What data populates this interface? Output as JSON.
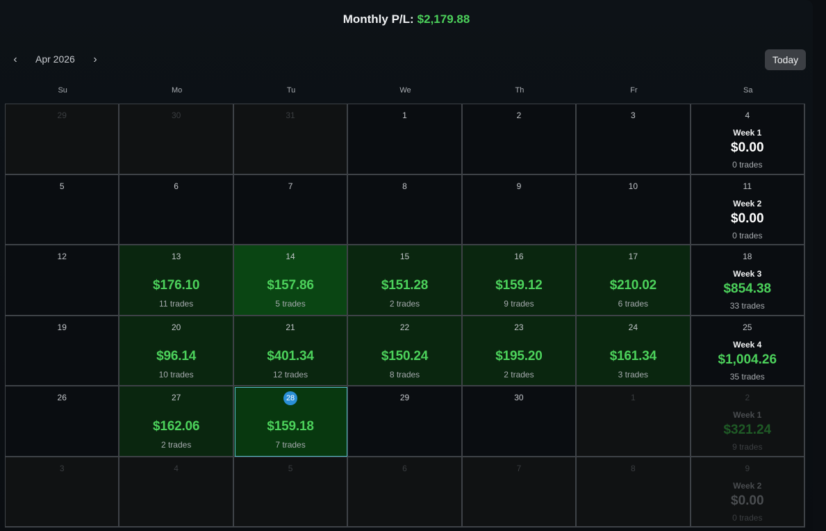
{
  "header": {
    "label": "Monthly P/L:",
    "value": "$2,179.88"
  },
  "nav": {
    "month": "Apr 2026",
    "prev_icon": "‹",
    "next_icon": "›",
    "today_label": "Today"
  },
  "days_of_week": [
    "Su",
    "Mo",
    "Tu",
    "We",
    "Th",
    "Fr",
    "Sa"
  ],
  "weeks": [
    {
      "days": [
        {
          "day": "29",
          "outside": true
        },
        {
          "day": "30",
          "outside": true
        },
        {
          "day": "31",
          "outside": true
        },
        {
          "day": "1"
        },
        {
          "day": "2"
        },
        {
          "day": "3"
        }
      ],
      "summary": {
        "day": "4",
        "label": "Week 1",
        "pnl": "$0.00",
        "trades": "0 trades",
        "positive": false,
        "outside": false
      }
    },
    {
      "days": [
        {
          "day": "5"
        },
        {
          "day": "6"
        },
        {
          "day": "7"
        },
        {
          "day": "8"
        },
        {
          "day": "9"
        },
        {
          "day": "10"
        }
      ],
      "summary": {
        "day": "11",
        "label": "Week 2",
        "pnl": "$0.00",
        "trades": "0 trades",
        "positive": false,
        "outside": false
      }
    },
    {
      "days": [
        {
          "day": "12"
        },
        {
          "day": "13",
          "pnl": "$176.10",
          "trades": "11 trades"
        },
        {
          "day": "14",
          "pnl": "$157.86",
          "trades": "5 trades",
          "strong": true
        },
        {
          "day": "15",
          "pnl": "$151.28",
          "trades": "2 trades"
        },
        {
          "day": "16",
          "pnl": "$159.12",
          "trades": "9 trades"
        },
        {
          "day": "17",
          "pnl": "$210.02",
          "trades": "6 trades"
        }
      ],
      "summary": {
        "day": "18",
        "label": "Week 3",
        "pnl": "$854.38",
        "trades": "33 trades",
        "positive": true,
        "outside": false
      }
    },
    {
      "days": [
        {
          "day": "19"
        },
        {
          "day": "20",
          "pnl": "$96.14",
          "trades": "10 trades"
        },
        {
          "day": "21",
          "pnl": "$401.34",
          "trades": "12 trades"
        },
        {
          "day": "22",
          "pnl": "$150.24",
          "trades": "8 trades"
        },
        {
          "day": "23",
          "pnl": "$195.20",
          "trades": "2 trades"
        },
        {
          "day": "24",
          "pnl": "$161.34",
          "trades": "3 trades"
        }
      ],
      "summary": {
        "day": "25",
        "label": "Week 4",
        "pnl": "$1,004.26",
        "trades": "35 trades",
        "positive": true,
        "outside": false
      }
    },
    {
      "days": [
        {
          "day": "26"
        },
        {
          "day": "27",
          "pnl": "$162.06",
          "trades": "2 trades"
        },
        {
          "day": "28",
          "pnl": "$159.18",
          "trades": "7 trades",
          "today": true
        },
        {
          "day": "29"
        },
        {
          "day": "30"
        },
        {
          "day": "1",
          "outside": true
        }
      ],
      "summary": {
        "day": "2",
        "label": "Week 1",
        "pnl": "$321.24",
        "trades": "9 trades",
        "positive": true,
        "outside": true
      }
    },
    {
      "days": [
        {
          "day": "3",
          "outside": true
        },
        {
          "day": "4",
          "outside": true
        },
        {
          "day": "5",
          "outside": true
        },
        {
          "day": "6",
          "outside": true
        },
        {
          "day": "7",
          "outside": true
        },
        {
          "day": "8",
          "outside": true
        }
      ],
      "summary": {
        "day": "9",
        "label": "Week 2",
        "pnl": "$0.00",
        "trades": "0 trades",
        "positive": false,
        "outside": true
      }
    }
  ]
}
